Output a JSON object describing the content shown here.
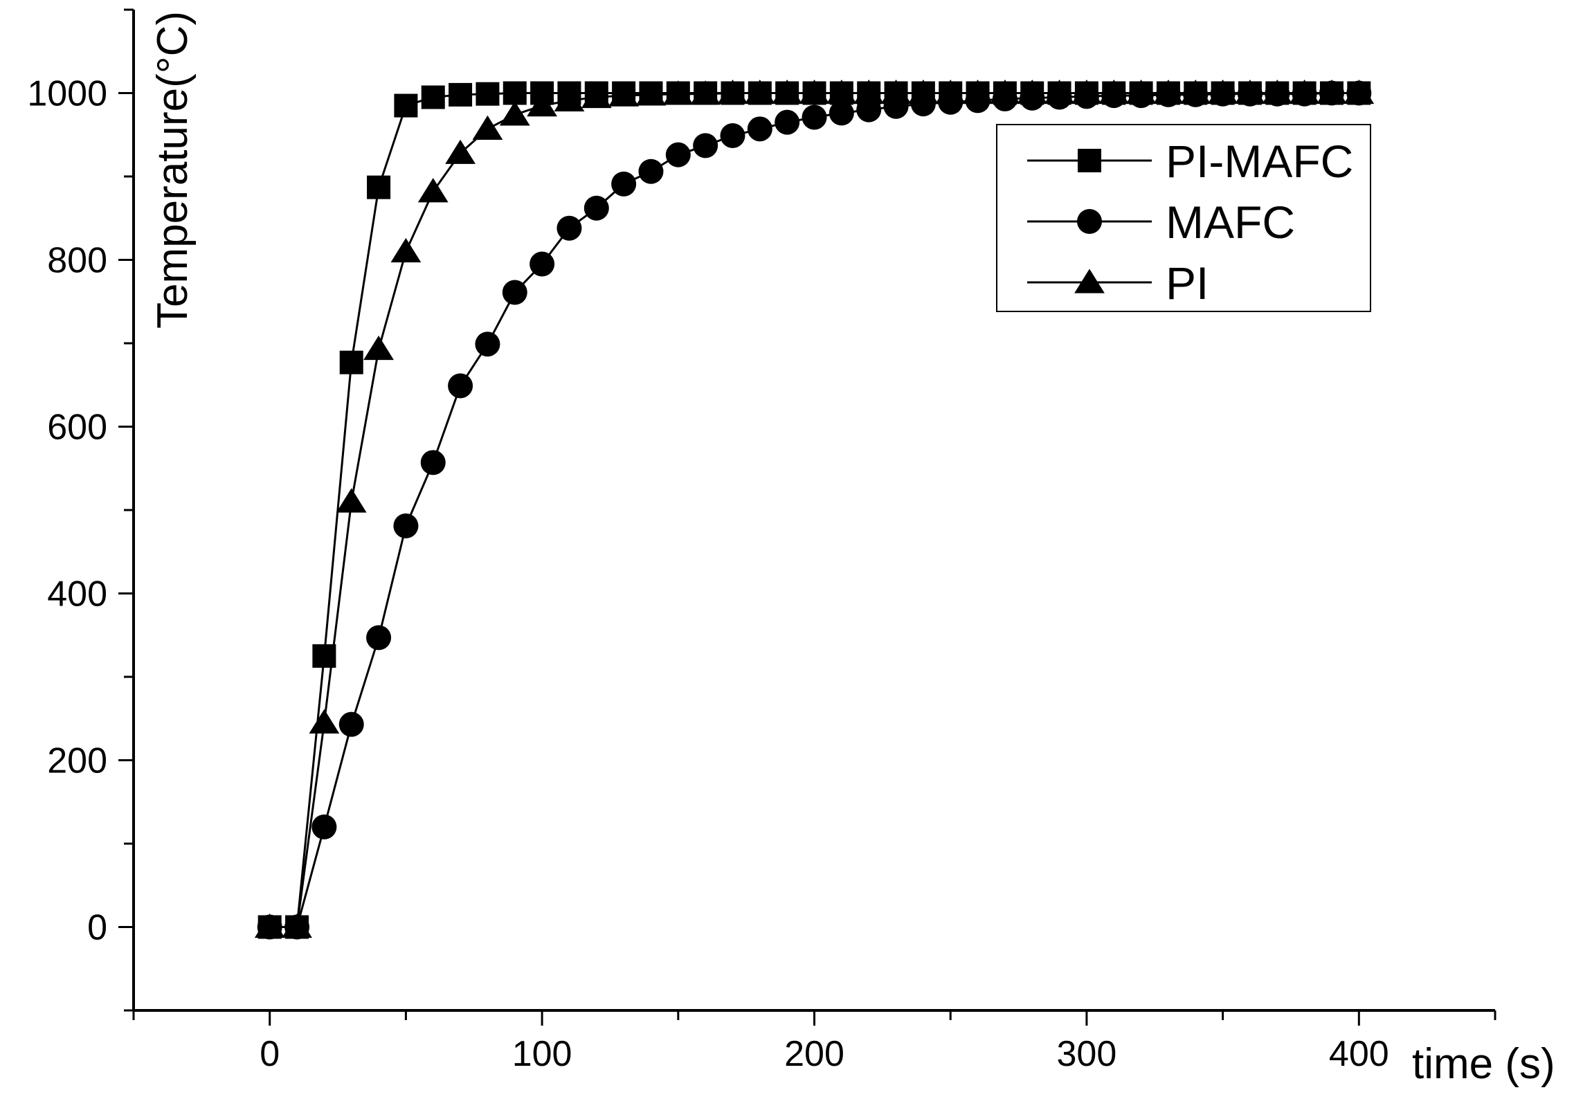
{
  "chart_data": {
    "type": "line",
    "title": "",
    "xlabel": "time (s)",
    "ylabel": "Temperature(°C)",
    "xlim": [
      -50,
      450
    ],
    "ylim": [
      -100,
      1100
    ],
    "xticks": [
      0,
      100,
      200,
      300,
      400
    ],
    "yticks": [
      0,
      200,
      400,
      600,
      800,
      1000
    ],
    "grid": false,
    "legend_position": "top-right",
    "x": [
      0,
      10,
      20,
      30,
      40,
      50,
      60,
      70,
      80,
      90,
      100,
      110,
      120,
      130,
      140,
      150,
      160,
      170,
      180,
      190,
      200,
      210,
      220,
      230,
      240,
      250,
      260,
      270,
      280,
      290,
      300,
      310,
      320,
      330,
      340,
      350,
      360,
      370,
      380,
      390,
      400
    ],
    "series": [
      {
        "name": "PI-MAFC",
        "marker": "square",
        "values": [
          0,
          0,
          325,
          677,
          887,
          985,
          995,
          998,
          999,
          1000,
          1000,
          1000,
          1000,
          1000,
          1000,
          1000,
          1000,
          1000,
          1000,
          1000,
          1000,
          1000,
          1000,
          1000,
          1000,
          1000,
          1000,
          1000,
          1000,
          1000,
          1000,
          1000,
          1000,
          1000,
          1000,
          1000,
          1000,
          1000,
          1000,
          1000,
          1000
        ]
      },
      {
        "name": "MAFC",
        "marker": "circle",
        "values": [
          0,
          0,
          120,
          243,
          347,
          481,
          557,
          649,
          699,
          761,
          795,
          838,
          862,
          891,
          906,
          926,
          937,
          949,
          957,
          965,
          971,
          976,
          980,
          984,
          987,
          989,
          991,
          993,
          994,
          995,
          996,
          997,
          997,
          998,
          998,
          999,
          999,
          999,
          999,
          1000,
          1000
        ]
      },
      {
        "name": "PI",
        "marker": "triangle",
        "values": [
          0,
          0,
          245,
          510,
          693,
          810,
          882,
          928,
          957,
          974,
          985,
          991,
          995,
          997,
          998,
          999,
          999,
          1000,
          1000,
          1000,
          1000,
          1000,
          1000,
          1000,
          1000,
          1000,
          1000,
          1000,
          1000,
          1000,
          1000,
          1000,
          1000,
          1000,
          1000,
          1000,
          1000,
          1000,
          1000,
          1000,
          1000
        ]
      }
    ]
  }
}
